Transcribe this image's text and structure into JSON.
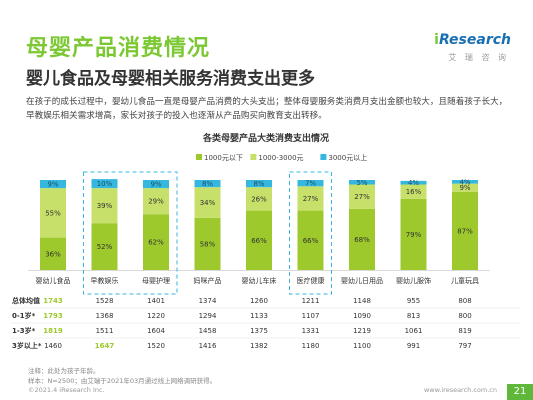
{
  "header": {
    "title": "母婴产品消费情况",
    "subtitle": "婴儿食品及母婴相关服务消费支出更多",
    "logo_brand": "iResearch",
    "logo_cn": "艾 瑞 咨 询"
  },
  "paragraph": "在孩子的成长过程中，婴幼儿食品一直是母婴产品消费的大头支出；整体母婴服务类消费月支出金额也较大，且随着孩子长大，早教娱乐相关需求增高，家长对孩子的投入也逐渐从产品购买向教育支出转移。",
  "chart_data": {
    "type": "bar",
    "title": "各类母婴产品大类消费支出情况",
    "categories": [
      "婴幼儿食品",
      "早教娱乐",
      "母婴护理",
      "妈咪产品",
      "婴幼儿车床",
      "医疗健康",
      "婴幼儿日用品",
      "婴幼儿服饰",
      "儿童玩具"
    ],
    "series": [
      {
        "name": "1000元以下",
        "color": "#9dc92c",
        "values": [
          36,
          52,
          62,
          58,
          66,
          66,
          68,
          79,
          87
        ],
        "labels": [
          "36%",
          "52%",
          "62%",
          "58%",
          "66%",
          "66%",
          "68%",
          "79%",
          "87%"
        ]
      },
      {
        "name": "1000-3000元",
        "color": "#c7e06a",
        "values": [
          55,
          39,
          29,
          34,
          26,
          27,
          27,
          16,
          9
        ],
        "labels": [
          "55%",
          "39%",
          "29%",
          "34%",
          "26%",
          "27%",
          "27%",
          "16%",
          "9%"
        ]
      },
      {
        "name": "3000元以上",
        "color": "#35b7df",
        "values": [
          9,
          10,
          9,
          8,
          8,
          7,
          5,
          4,
          4
        ],
        "labels": [
          "9%",
          "10%",
          "9%",
          "8%",
          "8%",
          "7%",
          "5%",
          "4%",
          "4%"
        ]
      }
    ],
    "ylim": [
      0,
      100
    ],
    "highlighted_groups": [
      [
        1,
        2
      ],
      [
        5
      ]
    ],
    "table": {
      "rows": [
        {
          "label": "总体均值",
          "values": [
            "1743",
            "1528",
            "1401",
            "1374",
            "1260",
            "1211",
            "1148",
            "955",
            "808"
          ],
          "highlight": [
            0
          ]
        },
        {
          "label": "0-1岁*",
          "values": [
            "1793",
            "1368",
            "1220",
            "1294",
            "1133",
            "1107",
            "1090",
            "813",
            "800"
          ],
          "highlight": [
            0
          ]
        },
        {
          "label": "1-3岁*",
          "values": [
            "1819",
            "1511",
            "1604",
            "1458",
            "1375",
            "1331",
            "1219",
            "1061",
            "819"
          ],
          "highlight": [
            0
          ]
        },
        {
          "label": "3岁以上*",
          "values": [
            "1460",
            "1647",
            "1520",
            "1416",
            "1382",
            "1180",
            "1100",
            "991",
            "797"
          ],
          "highlight": [
            1
          ]
        }
      ]
    }
  },
  "colors": {
    "brand_green": "#7cc832",
    "highlight_text": "#9dc92c",
    "dash_box": "#35b7df"
  },
  "footnotes": {
    "note": "注释：此处为孩子年龄。",
    "sample": "样本：N=2500；由艾瑞于2021年03月通过线上网络调研获得。"
  },
  "bottom": {
    "copyright": "©2021.4 iResearch Inc.",
    "url": "www.iresearch.com.cn",
    "page": "21"
  }
}
